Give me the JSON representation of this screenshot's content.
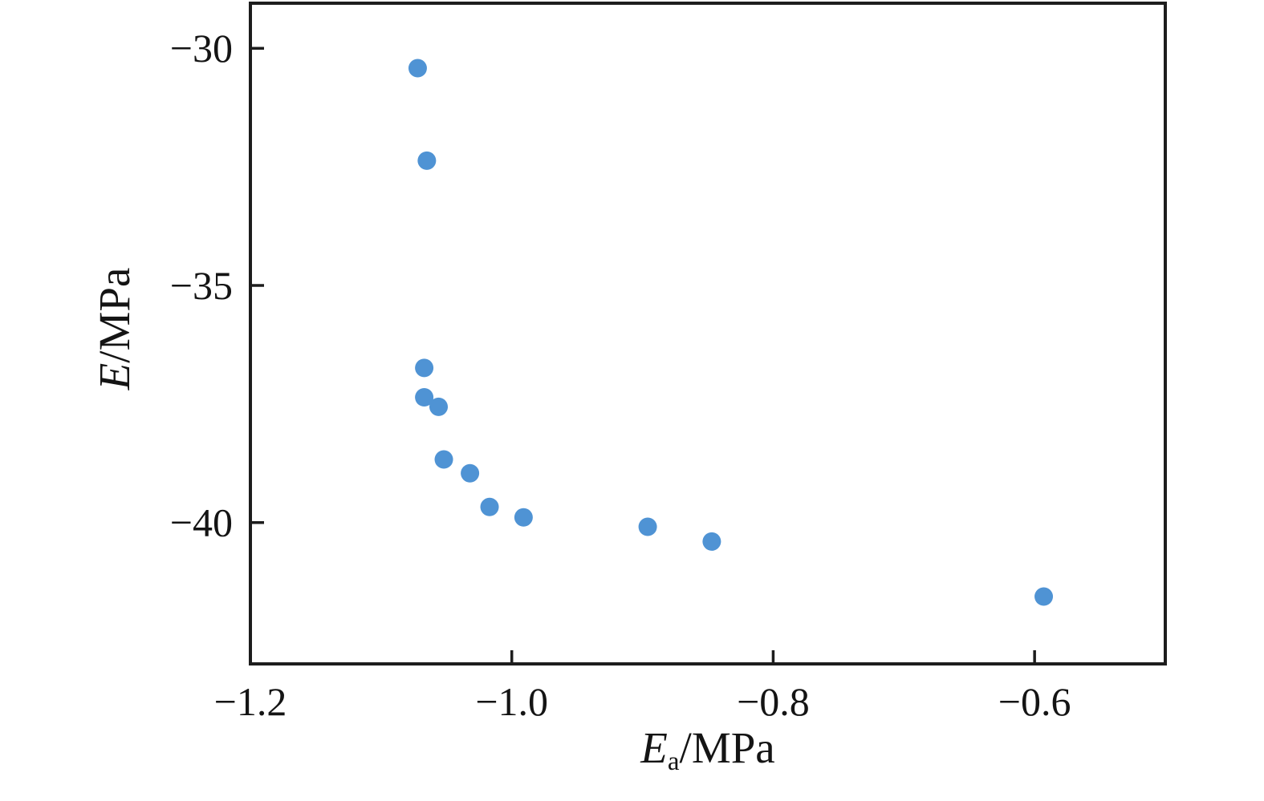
{
  "chart_data": {
    "type": "scatter",
    "title": "",
    "xlabel": {
      "variable": "E",
      "subscript": "a",
      "unit_suffix": "/MPa",
      "text": "Ea/MPa"
    },
    "ylabel": {
      "variable": "E",
      "unit_suffix": "/MPa",
      "text": "E/MPa"
    },
    "xlim": [
      -1.2,
      -0.5
    ],
    "ylim": [
      -42.98,
      -29.05
    ],
    "x_ticks": [
      {
        "value": -1.2,
        "label": "−1.2"
      },
      {
        "value": -1.0,
        "label": "−1.0"
      },
      {
        "value": -0.8,
        "label": "−0.8"
      },
      {
        "value": -0.6,
        "label": "−0.6"
      }
    ],
    "y_ticks": [
      {
        "value": -30,
        "label": "−30"
      },
      {
        "value": -35,
        "label": "−35"
      },
      {
        "value": -40,
        "label": "−40"
      }
    ],
    "grid": false,
    "legend": false,
    "frame": {
      "color": "#1d1d1d"
    },
    "marker": {
      "shape": "circle",
      "color": "#4f93d4",
      "radius_px": 11.5
    },
    "points": [
      {
        "x": -1.072,
        "y": -30.42
      },
      {
        "x": -1.065,
        "y": -32.37
      },
      {
        "x": -1.067,
        "y": -36.74
      },
      {
        "x": -1.067,
        "y": -37.36
      },
      {
        "x": -1.056,
        "y": -37.56
      },
      {
        "x": -1.052,
        "y": -38.67
      },
      {
        "x": -1.032,
        "y": -38.96
      },
      {
        "x": -1.017,
        "y": -39.67
      },
      {
        "x": -0.991,
        "y": -39.89
      },
      {
        "x": -0.896,
        "y": -40.09
      },
      {
        "x": -0.847,
        "y": -40.4
      },
      {
        "x": -0.593,
        "y": -41.56
      }
    ]
  }
}
